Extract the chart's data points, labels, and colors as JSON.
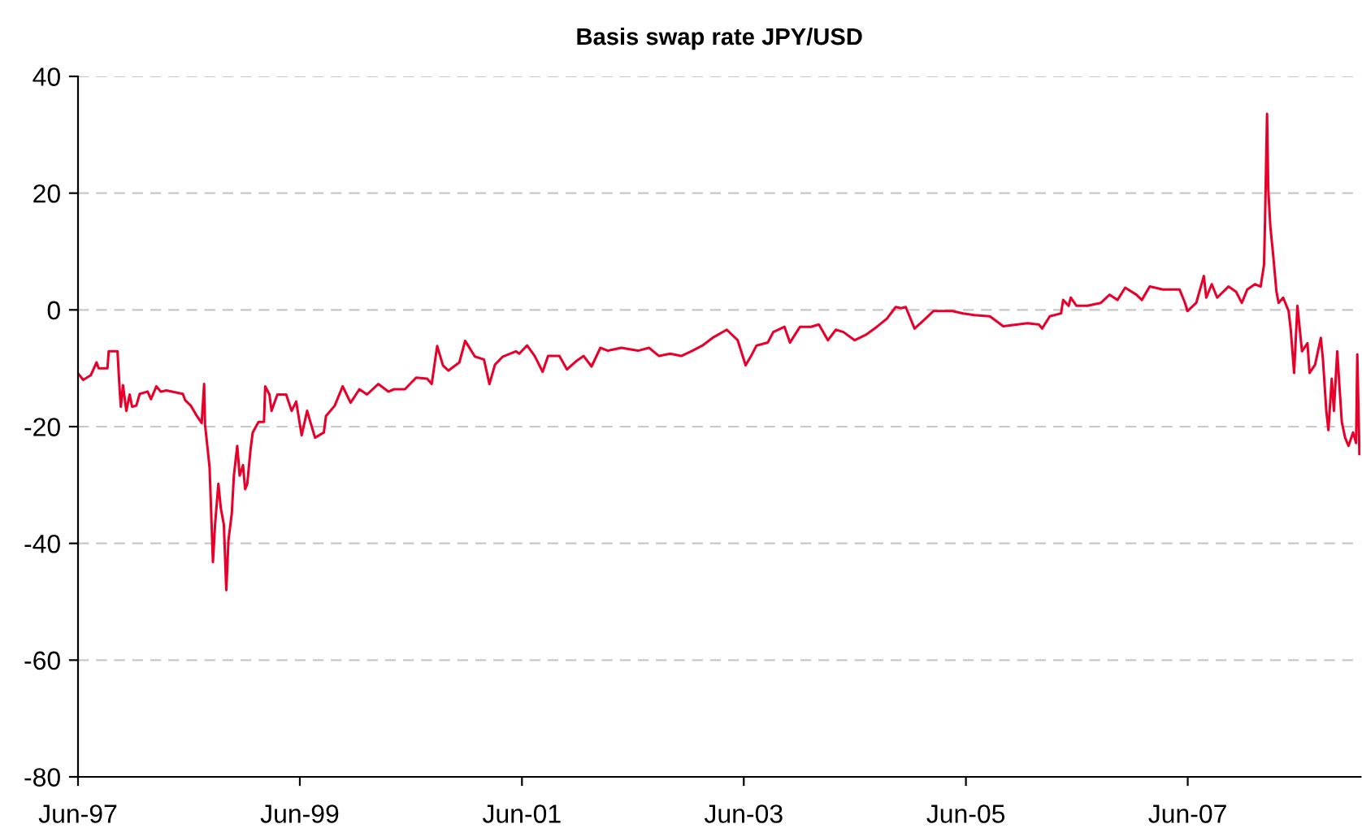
{
  "chart_data": {
    "type": "line",
    "title": "Basis swap rate JPY/USD",
    "x": [
      "1997-06-03",
      "1997-06-18",
      "1997-07-13",
      "1997-08-01",
      "1997-08-08",
      "1997-09-06",
      "1997-09-10",
      "1997-10-09",
      "1997-10-16",
      "1997-10-20",
      "1997-10-27",
      "1997-11-07",
      "1997-11-18",
      "1997-11-26",
      "1997-12-10",
      "1997-12-21",
      "1998-01-16",
      "1998-01-27",
      "1998-02-14",
      "1998-02-28",
      "1998-03-19",
      "1998-05-12",
      "1998-05-20",
      "1998-06-07",
      "1998-06-25",
      "1998-07-13",
      "1998-07-21",
      "1998-07-24",
      "1998-08-08",
      "1998-08-19",
      "1998-08-26",
      "1998-09-06",
      "1998-09-14",
      "1998-09-24",
      "1998-10-02",
      "1998-10-09",
      "1998-10-20",
      "1998-10-27",
      "1998-11-07",
      "1998-11-15",
      "1998-11-26",
      "1998-12-03",
      "1998-12-10",
      "1998-12-21",
      "1998-12-28",
      "1999-01-16",
      "1999-02-03",
      "1999-02-07",
      "1999-02-21",
      "1999-02-28",
      "1999-03-19",
      "1999-04-17",
      "1999-05-05",
      "1999-05-20",
      "1999-06-07",
      "1999-06-25",
      "1999-07-21",
      "1999-08-19",
      "1999-08-26",
      "1999-09-24",
      "1999-10-20",
      "1999-11-15",
      "1999-12-14",
      "2000-01-08",
      "2000-02-14",
      "2000-03-19",
      "2000-04-06",
      "2000-05-12",
      "2000-06-18",
      "2000-07-24",
      "2000-08-08",
      "2000-08-26",
      "2000-09-14",
      "2000-10-02",
      "2000-11-07",
      "2000-11-26",
      "2000-12-28",
      "2001-01-27",
      "2001-02-14",
      "2001-03-04",
      "2001-03-30",
      "2001-05-12",
      "2001-05-23",
      "2001-06-18",
      "2001-07-13",
      "2001-08-08",
      "2001-08-26",
      "2001-10-02",
      "2001-10-27",
      "2001-11-26",
      "2001-12-21",
      "2002-01-16",
      "2002-02-14",
      "2002-03-11",
      "2002-04-24",
      "2002-06-18",
      "2002-07-24",
      "2002-08-26",
      "2002-10-02",
      "2002-11-07",
      "2002-12-14",
      "2003-01-16",
      "2003-02-21",
      "2003-04-06",
      "2003-05-12",
      "2003-06-07",
      "2003-06-25",
      "2003-07-13",
      "2003-08-19",
      "2003-09-06",
      "2003-10-13",
      "2003-10-31",
      "2003-12-03",
      "2004-01-08",
      "2004-02-03",
      "2004-03-04",
      "2004-03-30",
      "2004-04-24",
      "2004-05-31",
      "2004-07-06",
      "2004-08-12",
      "2004-09-14",
      "2004-10-13",
      "2004-10-31",
      "2004-11-15",
      "2004-12-14",
      "2005-01-19",
      "2005-02-14",
      "2005-03-11",
      "2005-04-17",
      "2005-05-23",
      "2005-06-29",
      "2005-08-19",
      "2005-10-02",
      "2005-11-18",
      "2005-12-21",
      "2006-01-27",
      "2006-02-07",
      "2006-03-04",
      "2006-04-10",
      "2006-04-17",
      "2006-05-05",
      "2006-05-12",
      "2006-05-31",
      "2006-07-06",
      "2006-08-19",
      "2006-09-17",
      "2006-10-13",
      "2006-11-07",
      "2006-12-14",
      "2007-01-01",
      "2007-01-27",
      "2007-03-11",
      "2007-05-05",
      "2007-05-23",
      "2007-05-31",
      "2007-06-29",
      "2007-07-24",
      "2007-08-01",
      "2007-08-19",
      "2007-09-06",
      "2007-10-13",
      "2007-11-07",
      "2007-11-26",
      "2007-12-14",
      "2008-01-08",
      "2008-01-27",
      "2008-02-07",
      "2008-02-10",
      "2008-02-17",
      "2008-02-21",
      "2008-02-28",
      "2008-03-08",
      "2008-03-19",
      "2008-03-26",
      "2008-04-10",
      "2008-04-28",
      "2008-05-05",
      "2008-05-16",
      "2008-05-27",
      "2008-06-11",
      "2008-06-29",
      "2008-07-06",
      "2008-07-24",
      "2008-08-12",
      "2008-08-19",
      "2008-08-30",
      "2008-09-06",
      "2008-09-17",
      "2008-09-24",
      "2008-10-05",
      "2008-10-13",
      "2008-10-20",
      "2008-10-31",
      "2008-11-11",
      "2008-11-26",
      "2008-12-06",
      "2008-12-10",
      "2008-12-17"
    ],
    "series": [
      {
        "color": "#e8002a",
        "values": [
          -11,
          -12,
          -11.2,
          -9,
          -10,
          -10,
          -7.1,
          -7.1,
          -13.6,
          -16.6,
          -12.9,
          -17.3,
          -14.5,
          -16.6,
          -16.4,
          -14.4,
          -14,
          -15.3,
          -13.1,
          -14,
          -13.8,
          -14.4,
          -15.5,
          -16.4,
          -18,
          -19.4,
          -12.7,
          -19.6,
          -27,
          -43.2,
          -36.8,
          -29.8,
          -34,
          -36.8,
          -48,
          -39.5,
          -34.9,
          -28.4,
          -23.3,
          -28.4,
          -26.6,
          -30.7,
          -29.8,
          -23.8,
          -21,
          -19.2,
          -19.2,
          -13.1,
          -14.5,
          -17.3,
          -14.5,
          -14.5,
          -17.3,
          -15.7,
          -21.5,
          -17.3,
          -21.9,
          -21,
          -18.2,
          -16.4,
          -13.1,
          -15.9,
          -13.6,
          -14.5,
          -12.7,
          -14,
          -13.6,
          -13.6,
          -11.6,
          -11.8,
          -12.7,
          -6.2,
          -9.5,
          -10.4,
          -9,
          -5.3,
          -8,
          -8.5,
          -12.7,
          -9.4,
          -8,
          -7.1,
          -7.5,
          -6.1,
          -7.9,
          -10.6,
          -7.9,
          -7.9,
          -10.2,
          -8.8,
          -7.9,
          -9.7,
          -6.5,
          -7,
          -6.5,
          -7,
          -6.5,
          -7.9,
          -7.5,
          -7.9,
          -7,
          -6.1,
          -4.7,
          -3.4,
          -5.2,
          -9.5,
          -7.9,
          -6.1,
          -5.6,
          -3.8,
          -2.9,
          -5.6,
          -2.9,
          -2.9,
          -2.5,
          -5.2,
          -3.4,
          -3.8,
          -5.2,
          -4.3,
          -2.9,
          -1.5,
          0.5,
          0.3,
          0.5,
          -3.2,
          -1.5,
          -0.2,
          -0.2,
          -0.2,
          -0.6,
          -0.9,
          -1.1,
          -2.8,
          -2.5,
          -2.3,
          -2.5,
          -3.2,
          -1.1,
          -0.6,
          1.7,
          0.7,
          2.1,
          0.7,
          0.7,
          1.2,
          2.6,
          1.7,
          3.8,
          2.6,
          1.7,
          4,
          3.5,
          3.5,
          1.2,
          -0.2,
          1.2,
          5.8,
          2.1,
          4.4,
          2.1,
          4,
          3.1,
          1.2,
          3.5,
          4.4,
          4,
          7.7,
          14.2,
          33.6,
          20.6,
          14.2,
          9.5,
          3.1,
          1.2,
          2.1,
          -0.2,
          -3.4,
          -10.8,
          0.7,
          -7.1,
          -5.7,
          -10.8,
          -9.4,
          -4.8,
          -8.5,
          -17.3,
          -20.6,
          -11.8,
          -17.3,
          -7.1,
          -13.6,
          -19.2,
          -21.9,
          -23.3,
          -21,
          -22.8,
          -7.6,
          -24.7
        ]
      }
    ],
    "xlim": [
      "1997-06-01",
      "2008-12-21"
    ],
    "xticks": [
      {
        "value": "1997-06-01",
        "label": "Jun-97"
      },
      {
        "value": "1999-06-01",
        "label": "Jun-99"
      },
      {
        "value": "2001-06-01",
        "label": "Jun-01"
      },
      {
        "value": "2003-06-01",
        "label": "Jun-03"
      },
      {
        "value": "2005-06-01",
        "label": "Jun-05"
      },
      {
        "value": "2007-06-01",
        "label": "Jun-07"
      }
    ],
    "ylim": [
      -80,
      40
    ],
    "yticks": [
      -80,
      -60,
      -40,
      -20,
      0,
      20,
      40
    ],
    "grid": "y",
    "marker": "none",
    "line_style": "solid"
  }
}
